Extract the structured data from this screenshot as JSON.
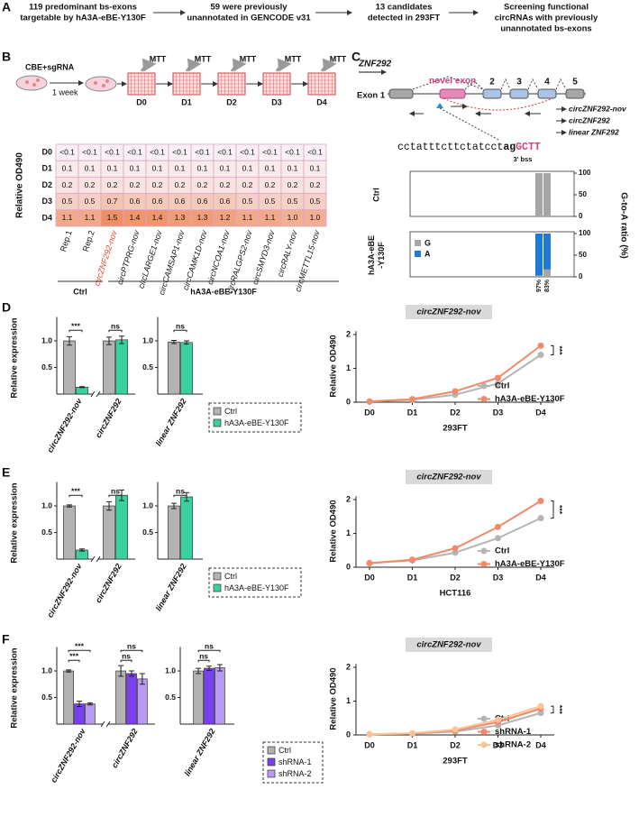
{
  "panel_a": {
    "label": "A",
    "steps": [
      [
        "119 predominant bs-exons",
        "targetable by hA3A-eBE-Y130F"
      ],
      [
        "59 were previously",
        "unannotated in GENCODE v31"
      ],
      [
        "13 candidates",
        "detected in 293FT"
      ],
      [
        "Screening functional",
        "circRNAs with previously",
        "unannotated bs-exons"
      ]
    ]
  },
  "panel_b": {
    "label": "B",
    "treatment": "CBE+sgRNA",
    "duration": "1 week",
    "assay": "MTT",
    "days": [
      "D0",
      "D1",
      "D2",
      "D3",
      "D4"
    ],
    "table": {
      "y_label": "Relative OD490",
      "rows": [
        "D0",
        "D1",
        "D2",
        "D3",
        "D4"
      ],
      "columns": [
        {
          "label": "Rep.1"
        },
        {
          "label": "Rep.2"
        },
        {
          "label": "circZNF292-nov",
          "color": "#e8452c"
        },
        {
          "label": "circPTPRG-nov"
        },
        {
          "label": "circLARGE1-nov"
        },
        {
          "label": "circCAMSAP1-nov"
        },
        {
          "label": "circCAMK1D-nov"
        },
        {
          "label": "circNCOA1-nov"
        },
        {
          "label": "circRALGPS2-nov"
        },
        {
          "label": "circSMYD3-nov"
        },
        {
          "label": "circRALY-nov"
        },
        {
          "label": "circMETTL15-nov"
        }
      ],
      "cells": [
        [
          "<0.1",
          "<0.1",
          "<0.1",
          "<0.1",
          "<0.1",
          "<0.1",
          "<0.1",
          "<0.1",
          "<0.1",
          "<0.1",
          "<0.1",
          "<0.1"
        ],
        [
          "0.1",
          "0.1",
          "0.1",
          "0.1",
          "0.1",
          "0.1",
          "0.1",
          "0.1",
          "0.1",
          "0.1",
          "0.1",
          "0.1"
        ],
        [
          "0.2",
          "0.2",
          "0.2",
          "0.2",
          "0.2",
          "0.2",
          "0.2",
          "0.2",
          "0.2",
          "0.2",
          "0.2",
          "0.2"
        ],
        [
          "0.5",
          "0.5",
          "0.7",
          "0.6",
          "0.6",
          "0.6",
          "0.6",
          "0.6",
          "0.5",
          "0.5",
          "0.5",
          "0.5"
        ],
        [
          "1.1",
          "1.1",
          "1.5",
          "1.4",
          "1.4",
          "1.3",
          "1.3",
          "1.2",
          "1.1",
          "1.1",
          "1.0",
          "1.0"
        ]
      ],
      "groups": [
        "Ctrl",
        "hA3A-eBE-Y130F"
      ]
    }
  },
  "panel_c": {
    "label": "C",
    "gene": "ZNF292",
    "first_exon": "Exon 1",
    "novel_exon": "novel exon",
    "exon_numbers": [
      "2",
      "3",
      "4",
      "5"
    ],
    "isoforms": [
      "circZNF292-nov",
      "circZNF292",
      "linear ZNF292"
    ],
    "sequence": [
      "cctatttcttctatcct",
      "ag",
      "GCTT"
    ],
    "site_label": "3' bss",
    "ratio_chart": {
      "type": "bar",
      "stacked": true,
      "y_label": "G-to-A ratio (%)",
      "groups": [
        [
          "Ctrl"
        ],
        [
          "hA3A-eBE",
          "-Y130F"
        ]
      ],
      "series": [
        {
          "name": "G",
          "color": "#a6a6a6",
          "values": [
            [
              100,
              100
            ],
            [
              3,
              17
            ]
          ]
        },
        {
          "name": "A",
          "color": "#1f78d1",
          "values": [
            [
              0,
              0
            ],
            [
              97,
              83
            ]
          ],
          "value_labels": [
            [
              null,
              null
            ],
            [
              "97%",
              "83%"
            ]
          ]
        }
      ],
      "ylim": [
        0,
        100
      ],
      "yticks": [
        0,
        50,
        100
      ]
    }
  },
  "panel_d": {
    "label": "D",
    "bar_chart": {
      "type": "bar",
      "y_label": "Relative expression",
      "categories": [
        "circZNF292-nov",
        "circZNF292",
        "linear ZNF292"
      ],
      "series": [
        {
          "name": "Ctrl",
          "color": "#b3b3b3",
          "values": [
            1.0,
            1.0,
            0.98
          ],
          "errors": [
            0.08,
            0.07,
            0.03
          ]
        },
        {
          "name": "hA3A-eBE-Y130F",
          "color": "#38d39c",
          "values": [
            0.13,
            1.02,
            0.97
          ],
          "errors": [
            0.01,
            0.07,
            0.03
          ]
        }
      ],
      "significance": [
        [
          "***"
        ],
        [
          "ns"
        ],
        [
          "ns"
        ]
      ],
      "ylim": [
        0,
        1.45
      ],
      "yticks": [
        0.5,
        {
          "value": 1,
          "label": "1.0"
        }
      ]
    },
    "line_chart": {
      "type": "line",
      "title": "circZNF292-nov",
      "x_label": "293FT",
      "y_label": "Relative OD490",
      "categories": [
        "D0",
        "D1",
        "D2",
        "D3",
        "D4"
      ],
      "series": [
        {
          "name": "Ctrl",
          "color": "#b5b5b5",
          "values": [
            0.02,
            0.07,
            0.22,
            0.55,
            1.4
          ]
        },
        {
          "name": "hA3A-eBE-Y130F",
          "color": "#f28a6a",
          "values": [
            0.02,
            0.09,
            0.32,
            0.72,
            1.67
          ]
        }
      ],
      "significance": "***",
      "ylim": [
        0,
        2.1
      ],
      "yticks": [
        0,
        1,
        2
      ]
    }
  },
  "panel_e": {
    "label": "E",
    "bar_chart": {
      "type": "bar",
      "y_label": "Relative expression",
      "categories": [
        "circZNF292-nov",
        "circZNF292",
        "linear ZNF292"
      ],
      "series": [
        {
          "name": "Ctrl",
          "color": "#b3b3b3",
          "values": [
            1.0,
            1.0,
            1.0
          ],
          "errors": [
            0.02,
            0.08,
            0.05
          ]
        },
        {
          "name": "hA3A-eBE-Y130F",
          "color": "#38d39c",
          "values": [
            0.17,
            1.2,
            1.17
          ],
          "errors": [
            0.02,
            0.1,
            0.08
          ]
        }
      ],
      "significance": [
        [
          "***"
        ],
        [
          "ns"
        ],
        [
          "ns"
        ]
      ],
      "ylim": [
        0,
        1.45
      ],
      "yticks": [
        0.5,
        {
          "value": 1,
          "label": "1.0"
        }
      ]
    },
    "line_chart": {
      "type": "line",
      "title": "circZNF292-nov",
      "x_label": "HCT116",
      "y_label": "Relative OD490",
      "categories": [
        "D0",
        "D1",
        "D2",
        "D3",
        "D4"
      ],
      "series": [
        {
          "name": "Ctrl",
          "color": "#b5b5b5",
          "values": [
            0.12,
            0.2,
            0.43,
            0.86,
            1.45
          ]
        },
        {
          "name": "hA3A-eBE-Y130F",
          "color": "#f28a6a",
          "values": [
            0.12,
            0.22,
            0.56,
            1.19,
            1.96
          ]
        }
      ],
      "significance": "***",
      "ylim": [
        0,
        2.1
      ],
      "yticks": [
        0,
        1,
        2
      ]
    }
  },
  "panel_f": {
    "label": "F",
    "bar_chart": {
      "type": "bar",
      "y_label": "Relative expression",
      "categories": [
        "circZNF292-nov",
        "circZNF292",
        "linear ZNF292"
      ],
      "series": [
        {
          "name": "Ctrl",
          "color": "#b3b3b3",
          "values": [
            1.0,
            1.0,
            1.0
          ],
          "errors": [
            0.02,
            0.1,
            0.05
          ]
        },
        {
          "name": "shRNA-1",
          "color": "#7a3ff0",
          "values": [
            0.38,
            0.95,
            1.05
          ],
          "errors": [
            0.05,
            0.05,
            0.04
          ]
        },
        {
          "name": "shRNA-2",
          "color": "#b99af3",
          "values": [
            0.38,
            0.85,
            1.06
          ],
          "errors": [
            0.02,
            0.1,
            0.06
          ]
        }
      ],
      "significance": [
        [
          "***",
          "***"
        ],
        [
          "ns",
          "ns"
        ],
        [
          "ns",
          "ns"
        ]
      ],
      "ylim": [
        0,
        1.45
      ],
      "yticks": [
        0.5,
        {
          "value": 1,
          "label": "1.0"
        }
      ]
    },
    "line_chart": {
      "type": "line",
      "title": "circZNF292-nov",
      "x_label": "293FT",
      "y_label": "Relative OD490",
      "categories": [
        "D0",
        "D1",
        "D2",
        "D3",
        "D4"
      ],
      "series": [
        {
          "name": "Ctrl",
          "color": "#b5b5b5",
          "values": [
            0.02,
            0.04,
            0.1,
            0.28,
            0.65
          ]
        },
        {
          "name": "shRNA-1",
          "color": "#f2876a",
          "values": [
            0.02,
            0.04,
            0.13,
            0.38,
            0.78
          ]
        },
        {
          "name": "shRNA-2",
          "color": "#f9c497",
          "values": [
            0.02,
            0.05,
            0.16,
            0.45,
            0.85
          ]
        }
      ],
      "significance": "***",
      "ylim": [
        0,
        2.1
      ],
      "yticks": [
        0,
        1,
        2
      ]
    }
  }
}
